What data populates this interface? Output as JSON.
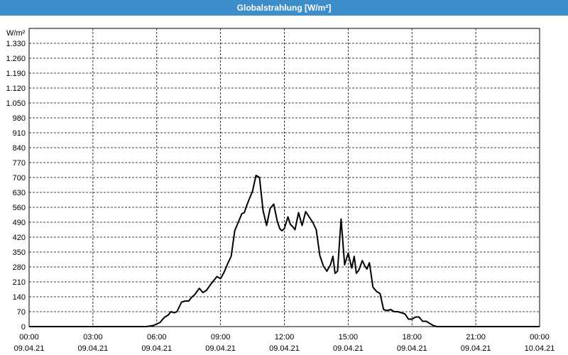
{
  "window_title": "Globalstrahlung [W/m²]",
  "chart_data": {
    "type": "line",
    "ylabel": "W/m²",
    "ylim": [
      0,
      1400
    ],
    "yticks": [
      0,
      70,
      140,
      210,
      280,
      350,
      420,
      490,
      560,
      630,
      700,
      770,
      840,
      910,
      980,
      1050,
      1120,
      1190,
      1260,
      1330
    ],
    "ytick_labels": [
      "0",
      "70",
      "140",
      "210",
      "280",
      "350",
      "420",
      "490",
      "560",
      "630",
      "700",
      "770",
      "840",
      "910",
      "980",
      "1.050",
      "1.120",
      "1.190",
      "1.260",
      "1.330"
    ],
    "xlim_hours": [
      0,
      24
    ],
    "xticks": [
      {
        "hour": 0,
        "time": "00:00",
        "date": "09.04.21"
      },
      {
        "hour": 3,
        "time": "03:00",
        "date": "09.04.21"
      },
      {
        "hour": 6,
        "time": "06:00",
        "date": "09.04.21"
      },
      {
        "hour": 9,
        "time": "09:00",
        "date": "09.04.21"
      },
      {
        "hour": 12,
        "time": "12:00",
        "date": "09.04.21"
      },
      {
        "hour": 15,
        "time": "15:00",
        "date": "09.04.21"
      },
      {
        "hour": 18,
        "time": "18:00",
        "date": "09.04.21"
      },
      {
        "hour": 21,
        "time": "21:00",
        "date": "09.04.21"
      },
      {
        "hour": 24,
        "time": "00:00",
        "date": "10.04.21"
      }
    ],
    "grid": true,
    "line_color": "#000000",
    "series": [
      {
        "x": [
          "00:00",
          "05:30",
          "05:50",
          "06:10",
          "06:17",
          "06:23",
          "06:33",
          "06:40",
          "06:50",
          "06:57",
          "07:10",
          "07:20",
          "07:30",
          "07:40",
          "07:47",
          "08:00",
          "08:10",
          "08:20",
          "08:33",
          "08:50",
          "09:00",
          "09:10",
          "09:20",
          "09:30",
          "09:40",
          "09:50",
          "10:00",
          "10:07",
          "10:13",
          "10:20",
          "10:30",
          "10:40",
          "10:50",
          "11:00",
          "11:10",
          "11:20",
          "11:30",
          "11:40",
          "11:47",
          "11:53",
          "12:00",
          "12:10",
          "12:17",
          "12:23",
          "12:30",
          "12:40",
          "12:50",
          "13:00",
          "13:10",
          "13:20",
          "13:30",
          "13:40",
          "13:50",
          "14:00",
          "14:10",
          "14:17",
          "14:23",
          "14:30",
          "14:40",
          "14:50",
          "15:00",
          "15:10",
          "15:17",
          "15:23",
          "15:30",
          "15:40",
          "15:47",
          "15:53",
          "16:00",
          "16:10",
          "16:20",
          "16:30",
          "16:40",
          "16:50",
          "17:00",
          "17:10",
          "17:20",
          "17:30",
          "17:40",
          "17:50",
          "18:00",
          "18:10",
          "18:20",
          "18:30",
          "18:40",
          "18:50",
          "19:00",
          "19:10",
          "24:00"
        ],
        "y": [
          0,
          0,
          5,
          20,
          35,
          45,
          55,
          70,
          65,
          70,
          115,
          120,
          120,
          140,
          150,
          180,
          160,
          170,
          200,
          235,
          225,
          255,
          295,
          330,
          450,
          490,
          530,
          535,
          565,
          595,
          635,
          710,
          700,
          545,
          475,
          555,
          575,
          495,
          460,
          450,
          460,
          515,
          480,
          470,
          455,
          535,
          475,
          540,
          515,
          490,
          455,
          335,
          285,
          260,
          290,
          330,
          250,
          260,
          505,
          290,
          345,
          275,
          330,
          250,
          265,
          310,
          285,
          270,
          300,
          185,
          165,
          155,
          80,
          75,
          80,
          70,
          70,
          65,
          60,
          35,
          35,
          45,
          45,
          25,
          25,
          15,
          5,
          0,
          0
        ]
      }
    ]
  }
}
